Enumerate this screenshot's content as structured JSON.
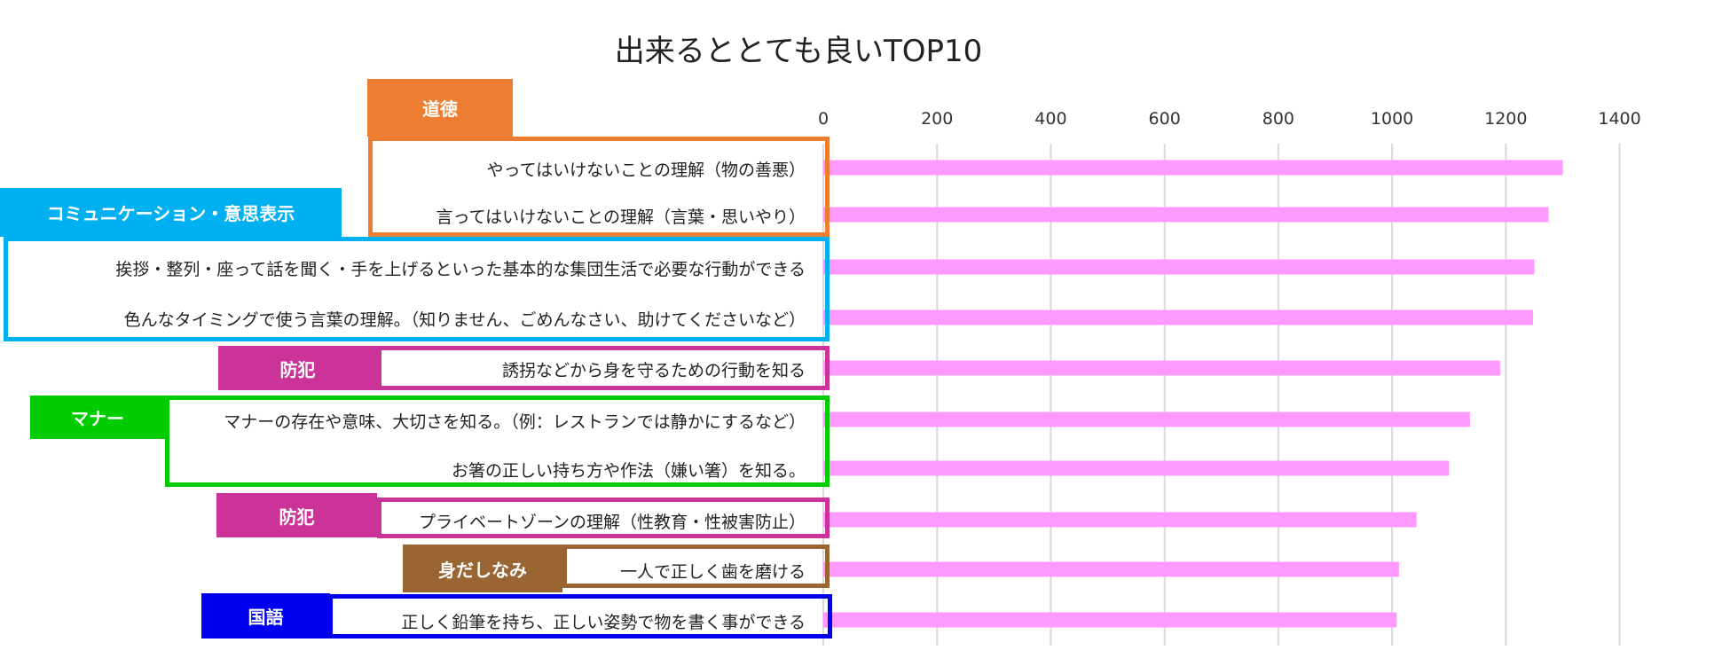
{
  "chart_data": {
    "type": "bar",
    "orientation": "horizontal",
    "title": "出来るととても良いTOP10",
    "xlim": [
      0,
      1400
    ],
    "xticks": [
      0,
      200,
      400,
      600,
      800,
      1000,
      1200,
      1400
    ],
    "x_axis_position": "top",
    "grid": true,
    "bar_color": "#FF99FF",
    "categories": [
      "やってはいけないことの理解（物の善悪）",
      "言ってはいけないことの理解（言葉・思いやり）",
      "挨拶・整列・座って話を聞く・手を上げるといった基本的な集団生活で必要な行動ができる",
      "色んなタイミングで使う言葉の理解。（知りません、ごめんなさい、助けてくださいなど）",
      "誘拐などから身を守るための行動を知る",
      "マナーの存在や意味、大切さを知る。（例：レストランでは静かにするなど）",
      "お箸の正しい持ち方や作法（嫌い箸）を知る。",
      "プライベートゾーンの理解（性教育・性被害防止）",
      "一人で正しく歯を磨ける",
      "正しく鉛筆を持ち、正しい姿勢で物を書く事ができる"
    ],
    "values": [
      1300,
      1275,
      1250,
      1248,
      1190,
      1137,
      1100,
      1043,
      1012,
      1008
    ],
    "groups": [
      {
        "label": "道徳",
        "color": "#ED7D31",
        "rows": [
          0,
          1
        ]
      },
      {
        "label": "コミュニケーション・意思表示",
        "color": "#00B0F0",
        "rows": [
          2,
          3
        ]
      },
      {
        "label": "防犯",
        "color": "#CC3399",
        "rows": [
          4
        ]
      },
      {
        "label": "マナー",
        "color": "#00CC00",
        "rows": [
          5,
          6
        ]
      },
      {
        "label": "防犯",
        "color": "#CC3399",
        "rows": [
          7
        ]
      },
      {
        "label": "身だしなみ",
        "color": "#996633",
        "rows": [
          8
        ]
      },
      {
        "label": "国語",
        "color": "#0000EE",
        "rows": [
          9
        ]
      }
    ]
  }
}
